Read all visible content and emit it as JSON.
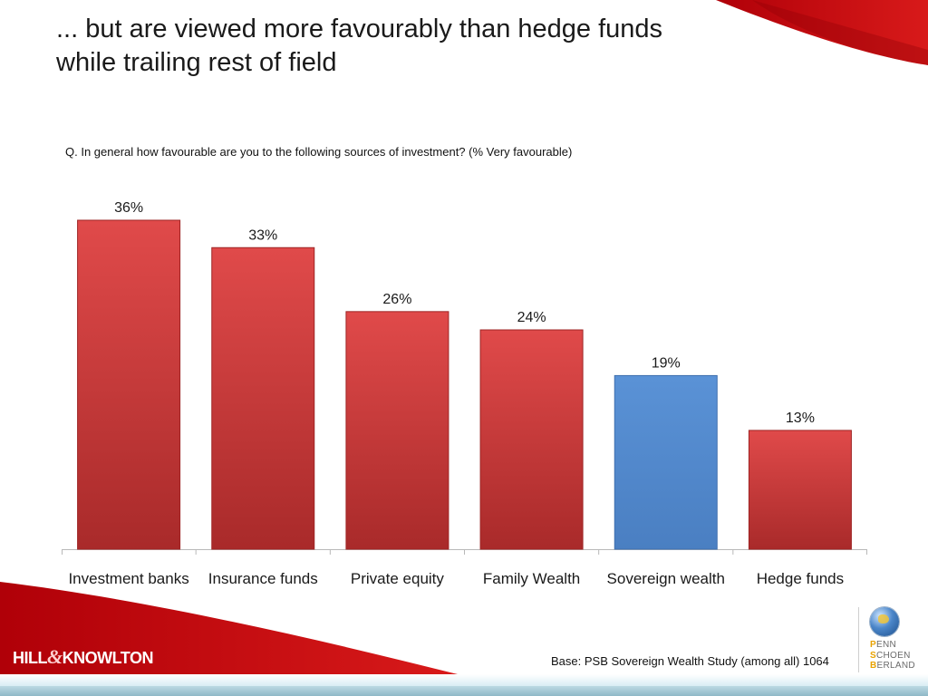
{
  "slide": {
    "title_line1": "... but are viewed more favourably than hedge funds",
    "title_line2": "while trailing rest of field",
    "question": "Q. In general how favourable are you to the following sources of investment? (% Very favourable)",
    "base_note": "Base: PSB Sovereign Wealth Study (among all) 1064"
  },
  "logos": {
    "left_brand": [
      "HILL",
      "&",
      "KNOWLTON"
    ],
    "right_brand": [
      {
        "initial": "P",
        "rest": "ENN"
      },
      {
        "initial": "S",
        "rest": "CHOEN"
      },
      {
        "initial": "B",
        "rest": "ERLAND"
      }
    ]
  },
  "colors": {
    "bar_default": "#d23a3a",
    "bar_highlight": "#4f86cc",
    "accent_red": "#c0000b",
    "axis": "#b8b8b8"
  },
  "chart_data": {
    "type": "bar",
    "title": "",
    "xlabel": "",
    "ylabel": "",
    "categories": [
      "Investment banks",
      "Insurance funds",
      "Private equity",
      "Family Wealth",
      "Sovereign wealth",
      "Hedge funds"
    ],
    "values": [
      36,
      33,
      26,
      24,
      19,
      13
    ],
    "value_labels": [
      "36%",
      "33%",
      "26%",
      "24%",
      "19%",
      "13%"
    ],
    "highlight_index": 4,
    "ylim": [
      0,
      36
    ],
    "grid": false,
    "legend": "none"
  }
}
